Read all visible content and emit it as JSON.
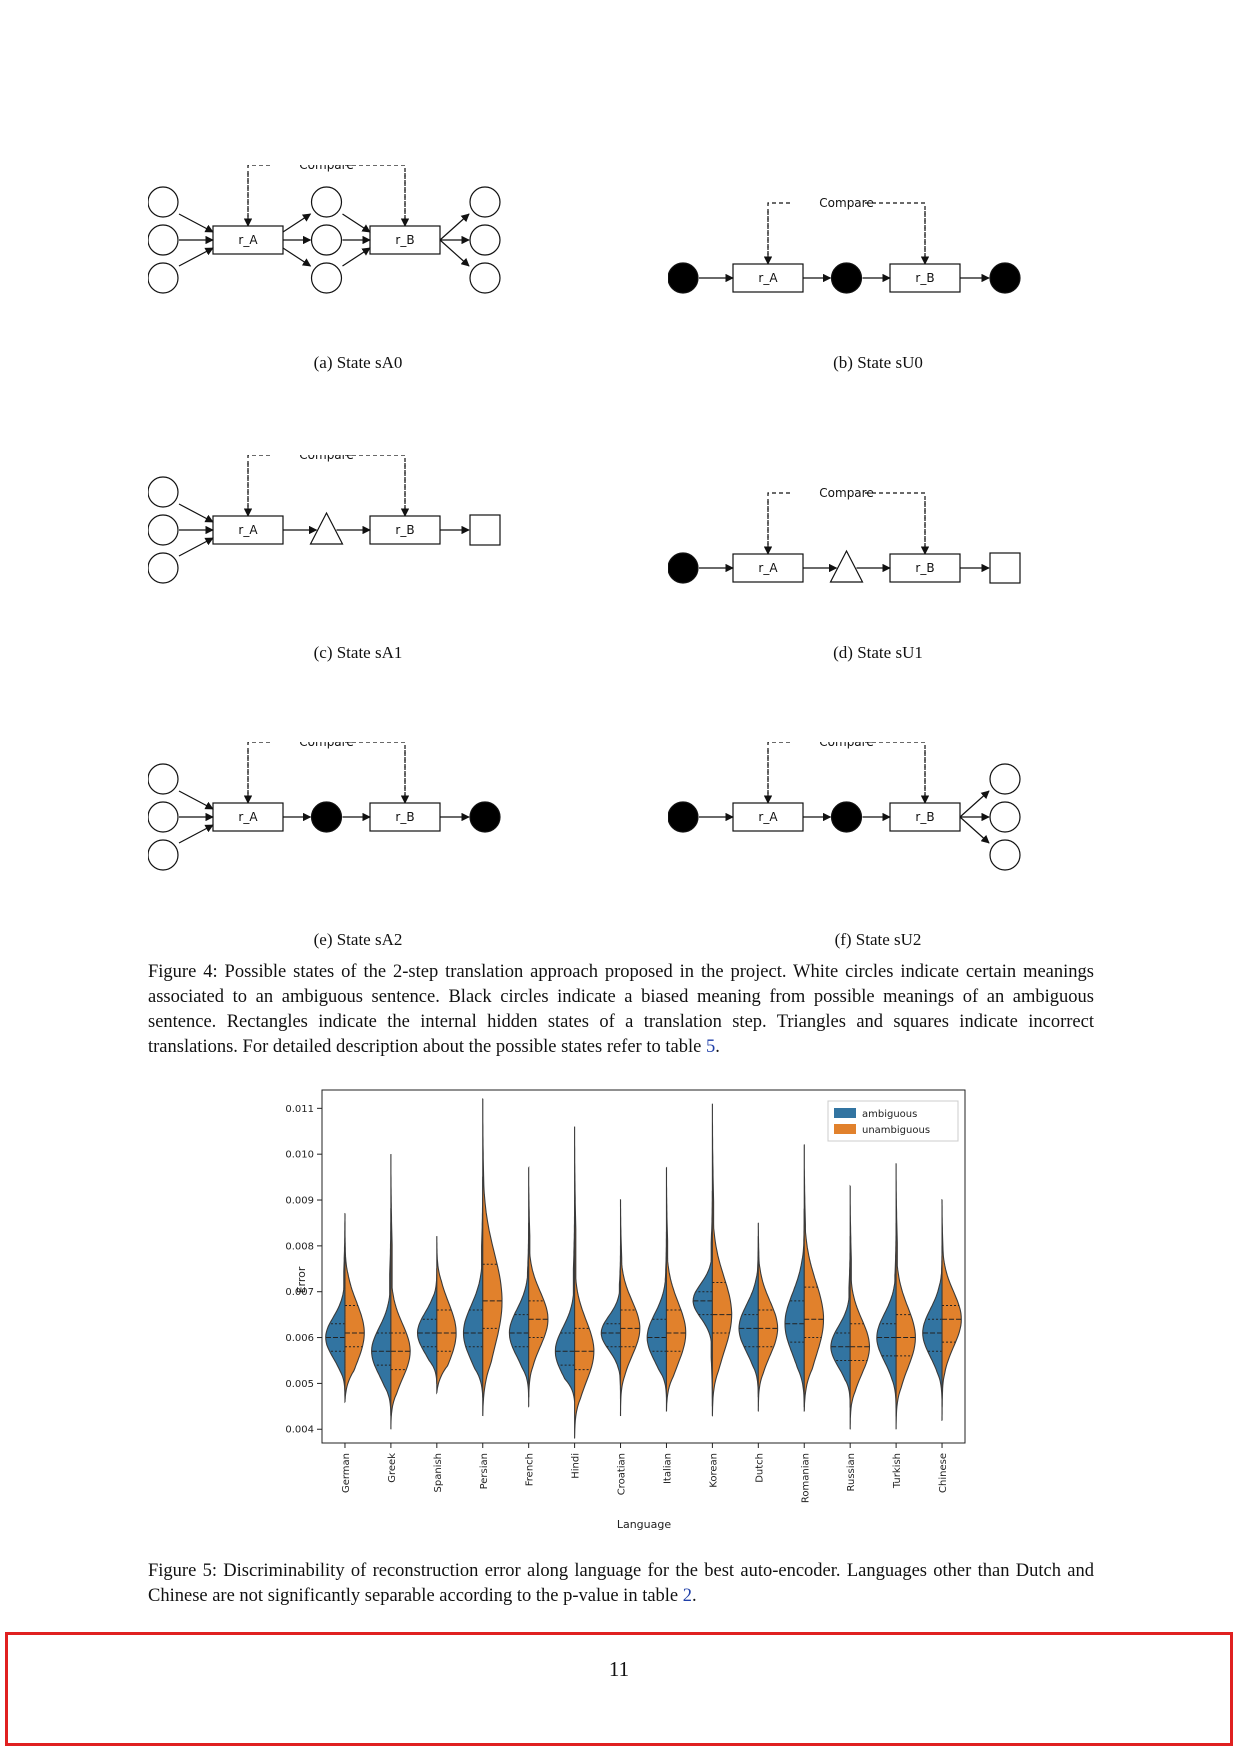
{
  "figure4": {
    "subfigures": [
      {
        "id": "a",
        "caption": "(a) State sA0",
        "compare_label": "Compare",
        "box_a": "r_A",
        "box_b": "r_B",
        "inputs": "three-white-circles",
        "middle": "three-white-circles",
        "outputs": "three-white-circles"
      },
      {
        "id": "b",
        "caption": "(b) State sU0",
        "compare_label": "Compare",
        "box_a": "r_A",
        "box_b": "r_B",
        "inputs": "black-circle",
        "middle": "black-circle",
        "outputs": "black-circle"
      },
      {
        "id": "c",
        "caption": "(c) State sA1",
        "compare_label": "Compare",
        "box_a": "r_A",
        "box_b": "r_B",
        "inputs": "three-white-circles",
        "middle": "triangle",
        "outputs": "square"
      },
      {
        "id": "d",
        "caption": "(d) State sU1",
        "compare_label": "Compare",
        "box_a": "r_A",
        "box_b": "r_B",
        "inputs": "black-circle",
        "middle": "triangle",
        "outputs": "square"
      },
      {
        "id": "e",
        "caption": "(e) State sA2",
        "compare_label": "Compare",
        "box_a": "r_A",
        "box_b": "r_B",
        "inputs": "three-white-circles",
        "middle": "black-circle",
        "outputs": "black-circle"
      },
      {
        "id": "f",
        "caption": "(f) State sU2",
        "compare_label": "Compare",
        "box_a": "r_A",
        "box_b": "r_B",
        "inputs": "black-circle",
        "middle": "black-circle",
        "outputs": "three-white-circles"
      }
    ],
    "caption_lead": "Figure 4: Possible states of the 2-step translation approach proposed in the project. White circles indicate certain meanings associated to an ambiguous sentence. Black circles indicate a biased meaning from possible meanings of an ambiguous sentence. Rectangles indicate the internal hidden states of a translation step. Triangles and squares indicate incorrect translations. For detailed description about the possible states refer to table ",
    "caption_ref": "5",
    "caption_tail": "."
  },
  "figure5": {
    "caption_lead": "Figure 5: Discriminability of reconstruction error along language for the best auto-encoder. Languages other than Dutch and Chinese are not significantly separable according to the p-value in table ",
    "caption_ref": "2",
    "caption_tail": "."
  },
  "chart_data": {
    "type": "violin",
    "xlabel": "Language",
    "ylabel": "Error",
    "ylim": [
      0.0037,
      0.0114
    ],
    "yticks": [
      "0.004",
      "0.005",
      "0.006",
      "0.007",
      "0.008",
      "0.009",
      "0.010",
      "0.011"
    ],
    "categories": [
      "German",
      "Greek",
      "Spanish",
      "Persian",
      "French",
      "Hindi",
      "Croatian",
      "Italian",
      "Korean",
      "Dutch",
      "Romanian",
      "Russian",
      "Turkish",
      "Chinese"
    ],
    "legend_position": "top-right",
    "series": [
      {
        "name": "ambiguous",
        "color": "#3274a1",
        "min": [
          0.0047,
          0.0043,
          0.005,
          0.0047,
          0.0047,
          0.0046,
          0.0047,
          0.0047,
          0.0045,
          0.0047,
          0.0045,
          0.0045,
          0.0043,
          0.0045
        ],
        "max": [
          0.0087,
          0.0088,
          0.0075,
          0.0095,
          0.0085,
          0.009,
          0.008,
          0.0083,
          0.0092,
          0.0082,
          0.0088,
          0.0082,
          0.0085,
          0.008
        ],
        "median": [
          0.006,
          0.0057,
          0.0061,
          0.0061,
          0.0061,
          0.0057,
          0.0061,
          0.006,
          0.0068,
          0.0062,
          0.0063,
          0.0058,
          0.006,
          0.0061
        ],
        "q1": [
          0.0057,
          0.0054,
          0.0058,
          0.0058,
          0.0058,
          0.0054,
          0.0058,
          0.0057,
          0.0065,
          0.0058,
          0.0059,
          0.0055,
          0.0056,
          0.0057
        ],
        "q3": [
          0.0063,
          0.0061,
          0.0064,
          0.0066,
          0.0065,
          0.0061,
          0.0063,
          0.0064,
          0.007,
          0.0065,
          0.0068,
          0.0061,
          0.0063,
          0.0064
        ]
      },
      {
        "name": "unambiguous",
        "color": "#e1812c",
        "min": [
          0.0046,
          0.004,
          0.0048,
          0.0043,
          0.0045,
          0.0038,
          0.0043,
          0.0044,
          0.0043,
          0.0044,
          0.0044,
          0.004,
          0.004,
          0.0042
        ],
        "max": [
          0.0085,
          0.01,
          0.0082,
          0.0112,
          0.0097,
          0.0106,
          0.009,
          0.0097,
          0.0111,
          0.0085,
          0.0102,
          0.0093,
          0.0098,
          0.009
        ],
        "median": [
          0.0061,
          0.0057,
          0.0061,
          0.0068,
          0.0064,
          0.0057,
          0.0062,
          0.0061,
          0.0065,
          0.0062,
          0.0064,
          0.0058,
          0.006,
          0.0064
        ],
        "q1": [
          0.0058,
          0.0053,
          0.0057,
          0.0062,
          0.006,
          0.0053,
          0.0058,
          0.0057,
          0.0061,
          0.0058,
          0.006,
          0.0055,
          0.0056,
          0.0059
        ],
        "q3": [
          0.0067,
          0.0061,
          0.0066,
          0.0076,
          0.0068,
          0.0062,
          0.0066,
          0.0066,
          0.0072,
          0.0066,
          0.0071,
          0.0063,
          0.0065,
          0.0067
        ]
      }
    ]
  },
  "footer": {
    "page_number": "11"
  }
}
